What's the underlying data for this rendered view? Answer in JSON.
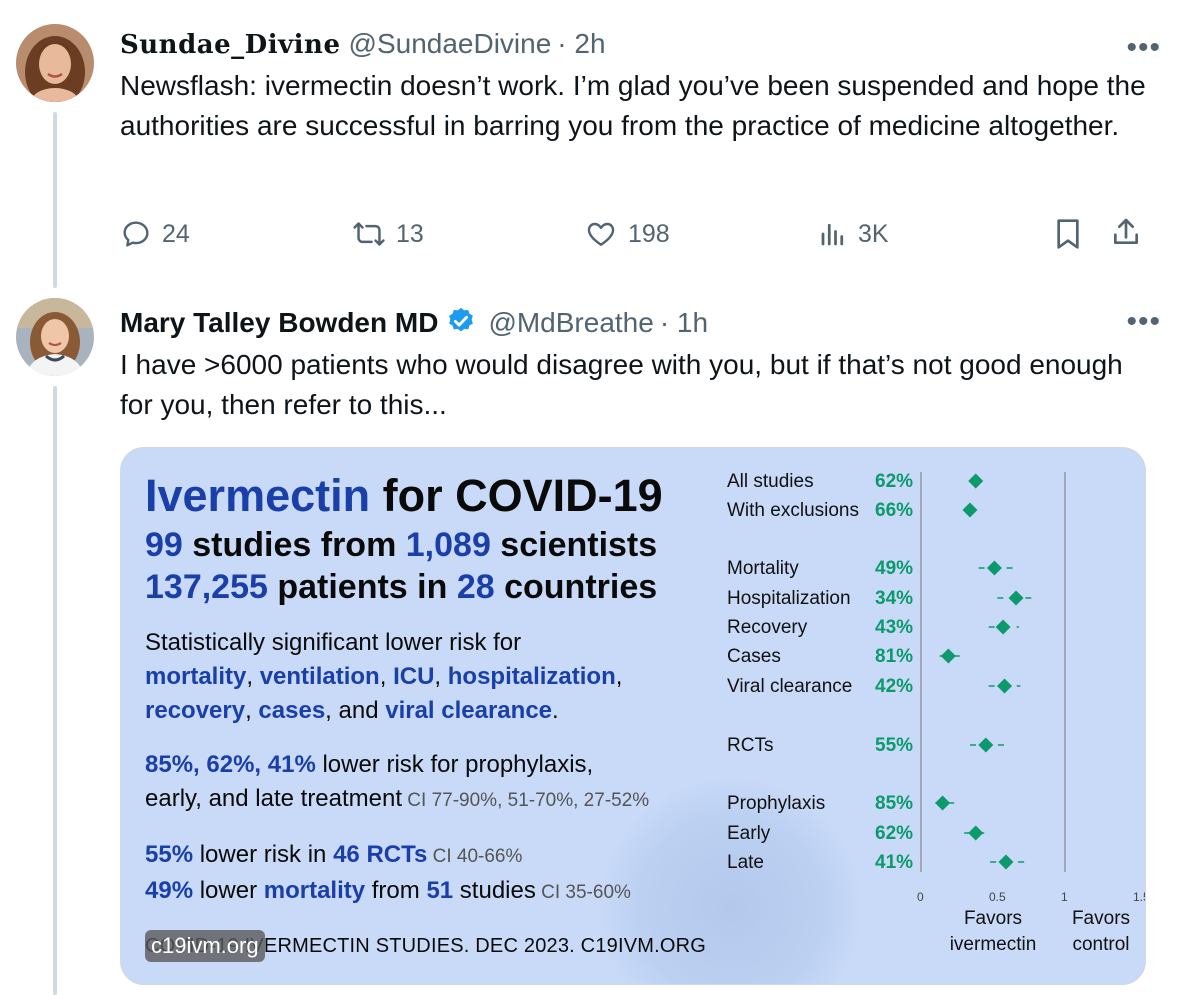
{
  "tweet1": {
    "display_name": "Sundae_Divine",
    "handle": "@SundaeDivine",
    "time": "· 2h",
    "more": "•••",
    "text": "Newsflash: ivermectin doesn’t work. I’m glad you’ve been suspended and hope the authorities are successful in barring you from the practice of medicine altogether.",
    "replies": "24",
    "reposts": "13",
    "likes": "198",
    "views": "3K"
  },
  "tweet2": {
    "display_name": "Mary Talley Bowden MD",
    "handle": "@MdBreathe",
    "time": "· 1h",
    "more": "•••",
    "text": "I have >6000 patients who would disagree with you, but if that’s not good enough for you, then refer to this..."
  },
  "card": {
    "title_a": "Ivermectin",
    "title_b": " for COVID-19",
    "line2": [
      "99",
      " studies from ",
      "1,089",
      " scientists"
    ],
    "line3": [
      "137,255",
      " patients in ",
      "28",
      " countries"
    ],
    "para1_lead": "Statistically significant lower risk for",
    "para1_items": [
      "mortality",
      ", ",
      "ventilation",
      ", ",
      "ICU",
      ", ",
      "hospitalization",
      ",",
      "recovery",
      ", ",
      "cases",
      ", and ",
      "viral clearance",
      "."
    ],
    "para2": [
      "85%, 62%, 41%",
      " lower risk for prophylaxis,",
      "early, and late treatment",
      " CI 77-90%, 51-70%, 27-52%"
    ],
    "para3": [
      "55%",
      " lower risk in ",
      "46 RCTs",
      " CI 40-66%"
    ],
    "para4": [
      "49%",
      " lower ",
      "mortality",
      " from ",
      "51",
      " studies",
      " CI 35-60%"
    ],
    "footer": "COVID-19 IVERMECTIN STUDIES. DEC 2023. C19IVM.ORG",
    "watermark": "c19ivm.org",
    "favors_left": [
      "Favors",
      "ivermectin"
    ],
    "favors_right": [
      "Favors",
      "control"
    ]
  },
  "chart_data": {
    "type": "scatter",
    "title": "",
    "xlabel": "",
    "ylabel": "",
    "xlim": [
      0,
      1.5
    ],
    "x_ticks": [
      "0",
      "0.5",
      "1",
      "1.5+"
    ],
    "marker_color": "#0c9a6c",
    "categories": [
      "All studies",
      "With exclusions",
      "Mortality",
      "Hospitalization",
      "Recovery",
      "Cases",
      "Viral clearance",
      "RCTs",
      "Prophylaxis",
      "Early",
      "Late"
    ],
    "labels": [
      "62%",
      "66%",
      "49%",
      "34%",
      "43%",
      "81%",
      "42%",
      "55%",
      "85%",
      "62%",
      "41%"
    ],
    "values": [
      0.38,
      0.34,
      0.51,
      0.66,
      0.57,
      0.19,
      0.58,
      0.45,
      0.15,
      0.38,
      0.59
    ],
    "ci_low": [
      0.34,
      0.31,
      0.4,
      0.53,
      0.47,
      0.13,
      0.47,
      0.34,
      0.1,
      0.3,
      0.48
    ],
    "ci_high": [
      0.42,
      0.37,
      0.65,
      0.8,
      0.68,
      0.27,
      0.69,
      0.6,
      0.23,
      0.49,
      0.73
    ]
  }
}
